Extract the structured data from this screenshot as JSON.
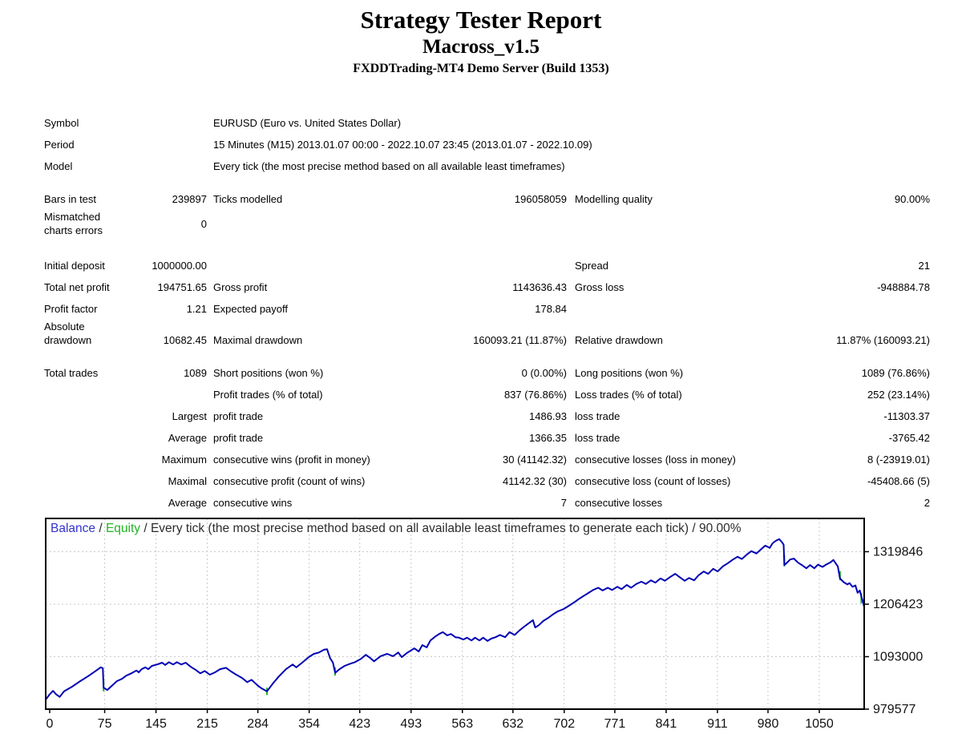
{
  "report": {
    "title": "Strategy Tester Report",
    "ea_name": "Macross_v1.5",
    "server": "FXDDTrading-MT4 Demo Server (Build 1353)"
  },
  "info_rows": [
    {
      "label": "Symbol",
      "value": "EURUSD (Euro vs. United States Dollar)"
    },
    {
      "label": "Period",
      "value": "15 Minutes (M15) 2013.01.07 00:00 - 2022.10.07 23:45 (2013.01.07 - 2022.10.09)"
    },
    {
      "label": "Model",
      "value": "Every tick (the most precise method based on all available least timeframes)"
    }
  ],
  "table_groups": [
    {
      "rows": [
        {
          "cells": [
            "Bars in test",
            "239897",
            "Ticks modelled",
            "196058059",
            "Modelling quality",
            "90.00%"
          ]
        },
        {
          "cells": [
            "Mismatched\ncharts errors",
            "0",
            "",
            "",
            "",
            ""
          ]
        }
      ]
    },
    {
      "rows": [
        {
          "cells": [
            "Initial deposit",
            "1000000.00",
            "",
            "",
            "Spread",
            "21"
          ]
        },
        {
          "cells": [
            "Total net profit",
            "194751.65",
            "Gross profit",
            "1143636.43",
            "Gross loss",
            "-948884.78"
          ]
        },
        {
          "cells": [
            "Profit factor",
            "1.21",
            "Expected payoff",
            "178.84",
            "",
            ""
          ]
        },
        {
          "cells": [
            "Absolute\ndrawdown",
            "10682.45",
            "Maximal drawdown",
            "160093.21 (11.87%)",
            "Relative drawdown",
            "11.87% (160093.21)"
          ],
          "valign": "end"
        }
      ]
    },
    {
      "rows": [
        {
          "cells": [
            "Total trades",
            "1089",
            "Short positions (won %)",
            "0 (0.00%)",
            "Long positions (won %)",
            "1089 (76.86%)"
          ]
        },
        {
          "cells": [
            "",
            "",
            "Profit trades (% of total)",
            "837 (76.86%)",
            "Loss trades (% of total)",
            "252 (23.14%)"
          ]
        },
        {
          "cells": [
            "",
            "Largest",
            "profit trade",
            "1486.93",
            "loss trade",
            "-11303.37"
          ]
        },
        {
          "cells": [
            "",
            "Average",
            "profit trade",
            "1366.35",
            "loss trade",
            "-3765.42"
          ]
        },
        {
          "cells": [
            "",
            "Maximum",
            "consecutive wins (profit in money)",
            "30 (41142.32)",
            "consecutive losses (loss in money)",
            "8 (-23919.01)"
          ]
        },
        {
          "cells": [
            "",
            "Maximal",
            "consecutive profit (count of wins)",
            "41142.32 (30)",
            "consecutive loss (count of losses)",
            "-45408.66 (5)"
          ]
        },
        {
          "cells": [
            "",
            "Average",
            "consecutive wins",
            "7",
            "consecutive losses",
            "2"
          ]
        }
      ]
    }
  ],
  "chart_data": {
    "type": "line",
    "title_balance": "Balance",
    "title_separator": " / ",
    "title_equity": "Equity",
    "title_rest": " / Every tick (the most precise method based on all available least timeframes to generate each tick) / 90.00%",
    "xlabel": "",
    "ylabel": "",
    "y_ticks": [
      1319846,
      1206423,
      1093000,
      979577
    ],
    "x_ticks": [
      0,
      75,
      145,
      215,
      284,
      354,
      423,
      493,
      563,
      632,
      702,
      771,
      841,
      911,
      980,
      1050
    ],
    "y_min": 979577,
    "y_max": 1391698,
    "x_tick_max": 1050,
    "x_curve_max": 1117,
    "colors": {
      "balance_line": "#0000B4",
      "balance_label": "#3333CC",
      "equity_green": "#22B422",
      "title_text": "#2B2B2B",
      "grid": "#C9C9C9",
      "axis_text": "#111111",
      "border": "#000000"
    },
    "series": [
      {
        "name": "Balance",
        "points": [
          [
            0,
            1000000
          ],
          [
            5,
            1011000
          ],
          [
            10,
            1019000
          ],
          [
            14,
            1012000
          ],
          [
            19,
            1006000
          ],
          [
            25,
            1018000
          ],
          [
            36,
            1028000
          ],
          [
            47,
            1040000
          ],
          [
            58,
            1051000
          ],
          [
            69,
            1063000
          ],
          [
            75,
            1070000
          ],
          [
            78,
            1068000
          ],
          [
            79,
            1026000
          ],
          [
            84,
            1021000
          ],
          [
            91,
            1031000
          ],
          [
            97,
            1040000
          ],
          [
            104,
            1045000
          ],
          [
            110,
            1052000
          ],
          [
            117,
            1057000
          ],
          [
            124,
            1063000
          ],
          [
            127,
            1059000
          ],
          [
            131,
            1066000
          ],
          [
            136,
            1070000
          ],
          [
            140,
            1066000
          ],
          [
            145,
            1073000
          ],
          [
            152,
            1076000
          ],
          [
            159,
            1080000
          ],
          [
            163,
            1075000
          ],
          [
            168,
            1081000
          ],
          [
            174,
            1076000
          ],
          [
            179,
            1081000
          ],
          [
            185,
            1076000
          ],
          [
            191,
            1080000
          ],
          [
            198,
            1071000
          ],
          [
            205,
            1064000
          ],
          [
            211,
            1057000
          ],
          [
            217,
            1062000
          ],
          [
            224,
            1054000
          ],
          [
            231,
            1059000
          ],
          [
            238,
            1066000
          ],
          [
            246,
            1069000
          ],
          [
            253,
            1061000
          ],
          [
            260,
            1054000
          ],
          [
            268,
            1047000
          ],
          [
            275,
            1038000
          ],
          [
            281,
            1043000
          ],
          [
            289,
            1031000
          ],
          [
            295,
            1024000
          ],
          [
            302,
            1018000
          ],
          [
            310,
            1035000
          ],
          [
            318,
            1050000
          ],
          [
            328,
            1066000
          ],
          [
            337,
            1076000
          ],
          [
            342,
            1070000
          ],
          [
            350,
            1080000
          ],
          [
            359,
            1092000
          ],
          [
            366,
            1099000
          ],
          [
            373,
            1102000
          ],
          [
            380,
            1108000
          ],
          [
            384,
            1109000
          ],
          [
            388,
            1090000
          ],
          [
            392,
            1080000
          ],
          [
            395,
            1058000
          ],
          [
            401,
            1066000
          ],
          [
            408,
            1073000
          ],
          [
            416,
            1078000
          ],
          [
            422,
            1081000
          ],
          [
            430,
            1088000
          ],
          [
            437,
            1097000
          ],
          [
            443,
            1090000
          ],
          [
            448,
            1083000
          ],
          [
            457,
            1094000
          ],
          [
            466,
            1099000
          ],
          [
            474,
            1094000
          ],
          [
            481,
            1102000
          ],
          [
            486,
            1092000
          ],
          [
            493,
            1101000
          ],
          [
            503,
            1111000
          ],
          [
            509,
            1104000
          ],
          [
            514,
            1118000
          ],
          [
            520,
            1113000
          ],
          [
            525,
            1128000
          ],
          [
            532,
            1137000
          ],
          [
            537,
            1142000
          ],
          [
            542,
            1146000
          ],
          [
            548,
            1139000
          ],
          [
            553,
            1142000
          ],
          [
            559,
            1135000
          ],
          [
            564,
            1134000
          ],
          [
            570,
            1130000
          ],
          [
            575,
            1134000
          ],
          [
            581,
            1128000
          ],
          [
            586,
            1134000
          ],
          [
            592,
            1128000
          ],
          [
            597,
            1134000
          ],
          [
            603,
            1127000
          ],
          [
            608,
            1132000
          ],
          [
            614,
            1135000
          ],
          [
            620,
            1140000
          ],
          [
            627,
            1135000
          ],
          [
            633,
            1146000
          ],
          [
            640,
            1140000
          ],
          [
            646,
            1149000
          ],
          [
            653,
            1158000
          ],
          [
            659,
            1165000
          ],
          [
            665,
            1172000
          ],
          [
            668,
            1156000
          ],
          [
            673,
            1161000
          ],
          [
            679,
            1170000
          ],
          [
            686,
            1177000
          ],
          [
            692,
            1184000
          ],
          [
            699,
            1191000
          ],
          [
            707,
            1196000
          ],
          [
            714,
            1203000
          ],
          [
            721,
            1210000
          ],
          [
            727,
            1217000
          ],
          [
            734,
            1224000
          ],
          [
            740,
            1230000
          ],
          [
            747,
            1237000
          ],
          [
            754,
            1242000
          ],
          [
            760,
            1236000
          ],
          [
            767,
            1242000
          ],
          [
            773,
            1237000
          ],
          [
            780,
            1244000
          ],
          [
            786,
            1239000
          ],
          [
            793,
            1248000
          ],
          [
            799,
            1242000
          ],
          [
            806,
            1250000
          ],
          [
            813,
            1255000
          ],
          [
            819,
            1250000
          ],
          [
            826,
            1258000
          ],
          [
            832,
            1253000
          ],
          [
            839,
            1262000
          ],
          [
            845,
            1257000
          ],
          [
            852,
            1265000
          ],
          [
            859,
            1272000
          ],
          [
            865,
            1265000
          ],
          [
            872,
            1257000
          ],
          [
            878,
            1263000
          ],
          [
            885,
            1258000
          ],
          [
            891,
            1269000
          ],
          [
            898,
            1277000
          ],
          [
            904,
            1272000
          ],
          [
            911,
            1283000
          ],
          [
            917,
            1277000
          ],
          [
            924,
            1288000
          ],
          [
            931,
            1295000
          ],
          [
            937,
            1302000
          ],
          [
            944,
            1309000
          ],
          [
            950,
            1304000
          ],
          [
            957,
            1314000
          ],
          [
            963,
            1321000
          ],
          [
            970,
            1316000
          ],
          [
            977,
            1326000
          ],
          [
            982,
            1333000
          ],
          [
            988,
            1328000
          ],
          [
            992,
            1338000
          ],
          [
            996,
            1343000
          ],
          [
            1001,
            1347000
          ],
          [
            1005,
            1340000
          ],
          [
            1007,
            1335000
          ],
          [
            1008,
            1291000
          ],
          [
            1011,
            1295000
          ],
          [
            1016,
            1303000
          ],
          [
            1021,
            1305000
          ],
          [
            1027,
            1296000
          ],
          [
            1032,
            1291000
          ],
          [
            1038,
            1284000
          ],
          [
            1043,
            1291000
          ],
          [
            1049,
            1284000
          ],
          [
            1054,
            1292000
          ],
          [
            1060,
            1287000
          ],
          [
            1065,
            1292000
          ],
          [
            1071,
            1297000
          ],
          [
            1075,
            1302000
          ],
          [
            1081,
            1288000
          ],
          [
            1084,
            1262000
          ],
          [
            1089,
            1254000
          ],
          [
            1094,
            1249000
          ],
          [
            1097,
            1252000
          ],
          [
            1101,
            1244000
          ],
          [
            1105,
            1247000
          ],
          [
            1108,
            1231000
          ],
          [
            1111,
            1236000
          ],
          [
            1113,
            1224000
          ],
          [
            1115,
            1213000
          ],
          [
            1117,
            1200000
          ]
        ]
      },
      {
        "name": "Equity",
        "visible_drop_segments": [
          [
            79,
            1042000,
            1018000
          ],
          [
            302,
            1026000,
            1010000
          ],
          [
            395,
            1070000,
            1052000
          ],
          [
            1008,
            1312000,
            1288000
          ],
          [
            1084,
            1278000,
            1258000
          ],
          [
            1113,
            1230000,
            1208000
          ]
        ]
      }
    ]
  }
}
